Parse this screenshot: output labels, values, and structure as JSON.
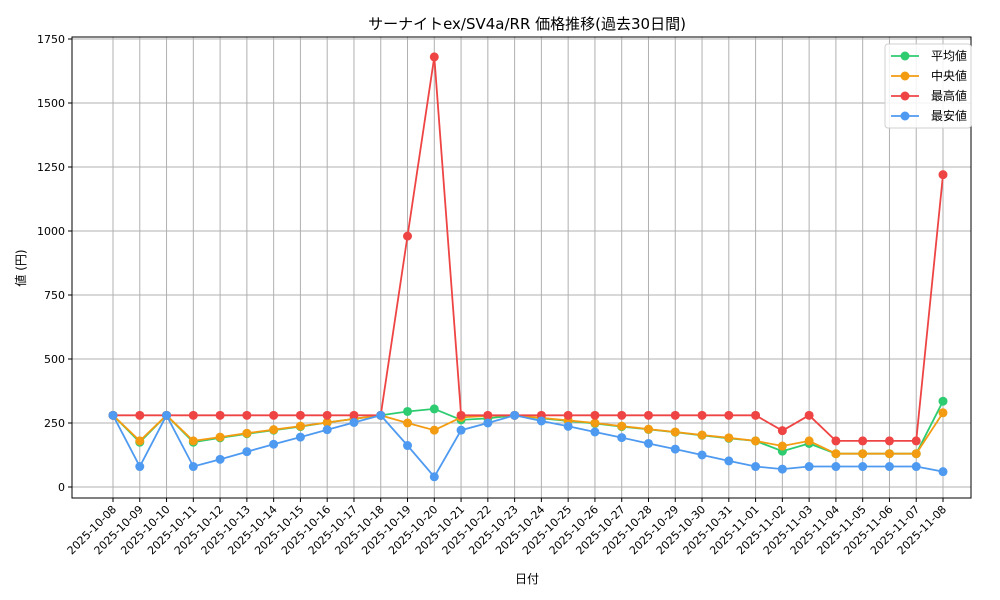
{
  "chart_data": {
    "type": "line",
    "title": "サーナイトex/SV4a/RR 価格推移(過去30日間)",
    "xlabel": "日付",
    "ylabel": "値 (円)",
    "ylim": [
      0,
      1750
    ],
    "yticks": [
      0,
      250,
      500,
      750,
      1000,
      1250,
      1500,
      1750
    ],
    "grid": true,
    "legend_position": "upper right",
    "x": [
      "2025-10-08",
      "2025-10-09",
      "2025-10-10",
      "2025-10-11",
      "2025-10-12",
      "2025-10-13",
      "2025-10-14",
      "2025-10-15",
      "2025-10-16",
      "2025-10-17",
      "2025-10-18",
      "2025-10-19",
      "2025-10-20",
      "2025-10-21",
      "2025-10-22",
      "2025-10-23",
      "2025-10-24",
      "2025-10-25",
      "2025-10-26",
      "2025-10-27",
      "2025-10-28",
      "2025-10-29",
      "2025-10-30",
      "2025-10-31",
      "2025-11-01",
      "2025-11-02",
      "2025-11-03",
      "2025-11-04",
      "2025-11-05",
      "2025-11-06",
      "2025-11-07",
      "2025-11-08"
    ],
    "series": [
      {
        "name": "平均値",
        "color": "#2ecc71",
        "values": [
          280,
          175,
          280,
          175,
          192,
          208,
          222,
          236,
          252,
          266,
          280,
          295,
          305,
          262,
          268,
          280,
          268,
          258,
          248,
          236,
          225,
          214,
          202,
          190,
          180,
          140,
          170,
          130,
          130,
          130,
          130,
          335
        ]
      },
      {
        "name": "中央値",
        "color": "#f39c12",
        "values": [
          280,
          180,
          280,
          180,
          195,
          210,
          224,
          238,
          252,
          266,
          280,
          250,
          222,
          272,
          278,
          280,
          270,
          260,
          250,
          238,
          226,
          215,
          203,
          192,
          180,
          160,
          180,
          130,
          130,
          130,
          130,
          290
        ]
      },
      {
        "name": "最高値",
        "color": "#ef4444",
        "values": [
          280,
          280,
          280,
          280,
          280,
          280,
          280,
          280,
          280,
          280,
          280,
          980,
          1680,
          280,
          280,
          280,
          280,
          280,
          280,
          280,
          280,
          280,
          280,
          280,
          280,
          220,
          280,
          180,
          180,
          180,
          180,
          1220
        ]
      },
      {
        "name": "最安値",
        "color": "#4e9af1",
        "values": [
          280,
          80,
          280,
          80,
          108,
          138,
          167,
          195,
          224,
          252,
          280,
          162,
          40,
          222,
          250,
          280,
          258,
          237,
          215,
          193,
          170,
          148,
          125,
          102,
          80,
          70,
          80,
          80,
          80,
          80,
          80,
          60
        ]
      }
    ]
  }
}
